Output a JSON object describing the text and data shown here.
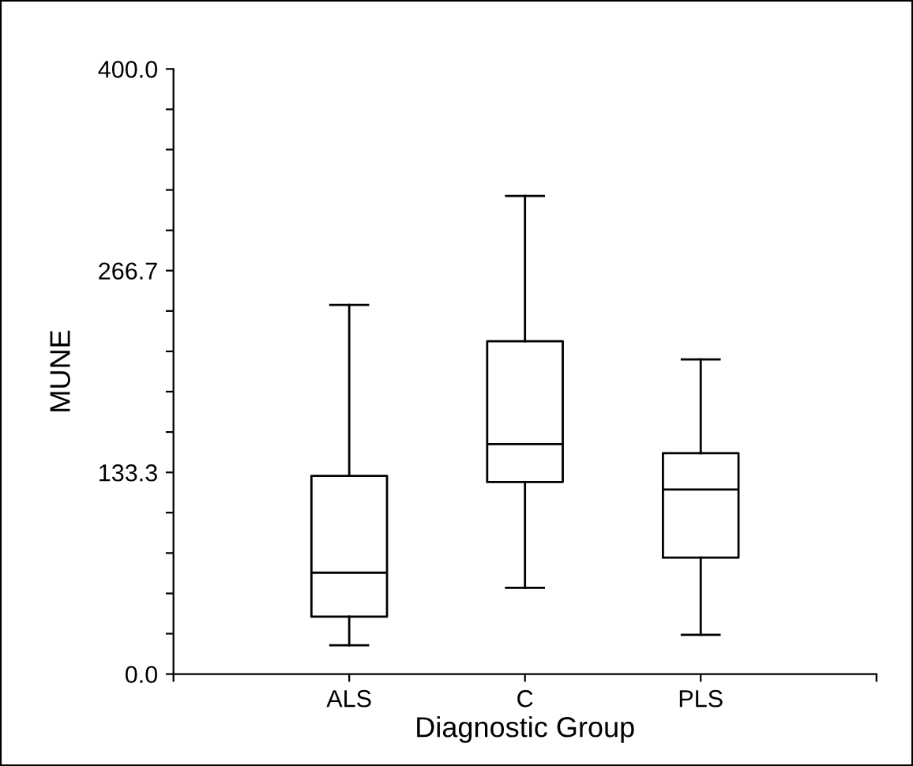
{
  "chart_data": {
    "type": "box",
    "xlabel": "Diagnostic Group",
    "ylabel": "MUNE",
    "categories": [
      "ALS",
      "C",
      "PLS"
    ],
    "boxes": [
      {
        "low": 19,
        "q1": 38,
        "median": 67,
        "q3": 131,
        "high": 244
      },
      {
        "low": 57,
        "q1": 127,
        "median": 152,
        "q3": 220,
        "high": 316
      },
      {
        "low": 26,
        "q1": 77,
        "median": 122,
        "q3": 146,
        "high": 208
      }
    ],
    "ylim": [
      0,
      400
    ],
    "yticks": [
      {
        "value": 0,
        "label": "0.0"
      },
      {
        "value": 26.7,
        "label": null
      },
      {
        "value": 53.3,
        "label": null
      },
      {
        "value": 80,
        "label": null
      },
      {
        "value": 106.7,
        "label": null
      },
      133.3,
      {
        "value": 160,
        "label": null
      },
      {
        "value": 186.7,
        "label": null
      },
      {
        "value": 213.3,
        "label": null
      },
      {
        "value": 240,
        "label": null
      },
      266.7,
      {
        "value": 293.3,
        "label": null
      },
      {
        "value": 320,
        "label": null
      },
      {
        "value": 346.7,
        "label": null
      },
      {
        "value": 373.3,
        "label": null
      },
      {
        "value": 400,
        "label": "400.0"
      }
    ],
    "grid": false
  }
}
